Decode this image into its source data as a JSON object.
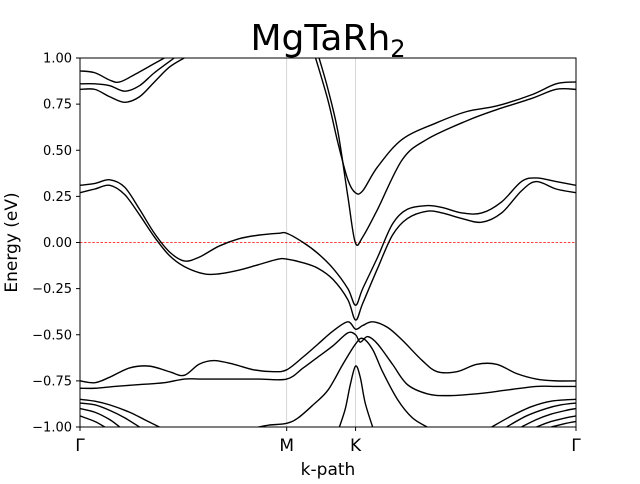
{
  "chart_data": {
    "type": "line",
    "title": {
      "main": "MgTaRh",
      "sub": "2"
    },
    "xlabel": "k-path",
    "ylabel": "Energy (eV)",
    "ylim": [
      -1.0,
      1.0
    ],
    "yticks": [
      -1.0,
      -0.75,
      -0.5,
      -0.25,
      0.0,
      0.25,
      0.5,
      0.75,
      1.0
    ],
    "ytick_labels": [
      "−1.00",
      "−0.75",
      "−0.50",
      "−0.25",
      "0.00",
      "0.25",
      "0.50",
      "0.75",
      "1.00"
    ],
    "kpoints": [
      {
        "label": "Γ",
        "x": 0.0
      },
      {
        "label": "M",
        "x": 0.4167
      },
      {
        "label": "K",
        "x": 0.5556
      },
      {
        "label": "Γ",
        "x": 1.0
      }
    ],
    "fermi_level": 0.0,
    "grid": "vertical lines at high-symmetry points",
    "series": [
      {
        "values": [
          [
            0.0,
            0.83
          ],
          [
            0.03,
            0.83
          ],
          [
            0.06,
            0.79
          ],
          [
            0.09,
            0.76
          ],
          [
            0.12,
            0.79
          ],
          [
            0.15,
            0.87
          ],
          [
            0.18,
            0.95
          ],
          [
            0.21,
            1.0
          ]
        ]
      },
      {
        "values": [
          [
            0.0,
            0.86
          ],
          [
            0.03,
            0.86
          ],
          [
            0.06,
            0.85
          ],
          [
            0.09,
            0.82
          ],
          [
            0.12,
            0.85
          ],
          [
            0.15,
            0.92
          ],
          [
            0.19,
            1.0
          ]
        ]
      },
      {
        "values": [
          [
            0.0,
            0.93
          ],
          [
            0.03,
            0.92
          ],
          [
            0.06,
            0.88
          ],
          [
            0.08,
            0.87
          ],
          [
            0.11,
            0.91
          ],
          [
            0.15,
            0.97
          ],
          [
            0.17,
            1.0
          ]
        ]
      },
      {
        "values": [
          [
            0.0,
            0.27
          ],
          [
            0.03,
            0.29
          ],
          [
            0.06,
            0.31
          ],
          [
            0.09,
            0.26
          ],
          [
            0.12,
            0.15
          ],
          [
            0.15,
            0.03
          ],
          [
            0.18,
            -0.07
          ],
          [
            0.21,
            -0.13
          ],
          [
            0.25,
            -0.17
          ],
          [
            0.28,
            -0.17
          ],
          [
            0.32,
            -0.15
          ],
          [
            0.36,
            -0.12
          ],
          [
            0.4,
            -0.09
          ],
          [
            0.4167,
            -0.09
          ],
          [
            0.45,
            -0.11
          ],
          [
            0.48,
            -0.14
          ],
          [
            0.51,
            -0.2
          ],
          [
            0.54,
            -0.31
          ],
          [
            0.5556,
            -0.42
          ],
          [
            0.57,
            -0.33
          ],
          [
            0.6,
            -0.14
          ],
          [
            0.63,
            0.04
          ],
          [
            0.66,
            0.13
          ],
          [
            0.7,
            0.17
          ],
          [
            0.73,
            0.16
          ],
          [
            0.77,
            0.13
          ],
          [
            0.81,
            0.11
          ],
          [
            0.85,
            0.16
          ],
          [
            0.89,
            0.28
          ],
          [
            0.92,
            0.33
          ],
          [
            0.96,
            0.29
          ],
          [
            1.0,
            0.27
          ]
        ]
      },
      {
        "values": [
          [
            0.0,
            0.31
          ],
          [
            0.03,
            0.32
          ],
          [
            0.06,
            0.34
          ],
          [
            0.09,
            0.3
          ],
          [
            0.12,
            0.18
          ],
          [
            0.15,
            0.05
          ],
          [
            0.18,
            -0.05
          ],
          [
            0.21,
            -0.1
          ],
          [
            0.24,
            -0.08
          ],
          [
            0.28,
            -0.02
          ],
          [
            0.32,
            0.02
          ],
          [
            0.36,
            0.04
          ],
          [
            0.4,
            0.05
          ],
          [
            0.4167,
            0.05
          ],
          [
            0.45,
            0.0
          ],
          [
            0.48,
            -0.06
          ],
          [
            0.51,
            -0.14
          ],
          [
            0.54,
            -0.25
          ],
          [
            0.5556,
            -0.34
          ],
          [
            0.57,
            -0.25
          ],
          [
            0.6,
            -0.08
          ],
          [
            0.63,
            0.1
          ],
          [
            0.66,
            0.18
          ],
          [
            0.7,
            0.2
          ],
          [
            0.73,
            0.19
          ],
          [
            0.77,
            0.16
          ],
          [
            0.81,
            0.16
          ],
          [
            0.85,
            0.22
          ],
          [
            0.89,
            0.33
          ],
          [
            0.92,
            0.35
          ],
          [
            0.96,
            0.33
          ],
          [
            1.0,
            0.31
          ]
        ]
      },
      {
        "values": [
          [
            0.482,
            1.0
          ],
          [
            0.5,
            0.83
          ],
          [
            0.52,
            0.6
          ],
          [
            0.54,
            0.25
          ],
          [
            0.555,
            0.0
          ],
          [
            0.57,
            0.03
          ],
          [
            0.6,
            0.18
          ],
          [
            0.65,
            0.45
          ],
          [
            0.7,
            0.56
          ],
          [
            0.78,
            0.66
          ],
          [
            0.84,
            0.72
          ],
          [
            0.91,
            0.78
          ],
          [
            0.96,
            0.83
          ],
          [
            1.0,
            0.83
          ]
        ]
      },
      {
        "values": [
          [
            0.475,
            1.0
          ],
          [
            0.5,
            0.77
          ],
          [
            0.52,
            0.54
          ],
          [
            0.54,
            0.34
          ],
          [
            0.555,
            0.27
          ],
          [
            0.57,
            0.28
          ],
          [
            0.6,
            0.41
          ],
          [
            0.65,
            0.56
          ],
          [
            0.72,
            0.65
          ],
          [
            0.78,
            0.71
          ],
          [
            0.84,
            0.74
          ],
          [
            0.91,
            0.8
          ],
          [
            0.96,
            0.86
          ],
          [
            1.0,
            0.87
          ]
        ]
      },
      {
        "values": [
          [
            0.0,
            -0.75
          ],
          [
            0.03,
            -0.76
          ],
          [
            0.06,
            -0.73
          ],
          [
            0.1,
            -0.68
          ],
          [
            0.14,
            -0.67
          ],
          [
            0.18,
            -0.7
          ],
          [
            0.21,
            -0.72
          ],
          [
            0.24,
            -0.66
          ],
          [
            0.27,
            -0.64
          ],
          [
            0.31,
            -0.66
          ],
          [
            0.35,
            -0.69
          ],
          [
            0.39,
            -0.7
          ],
          [
            0.4167,
            -0.69
          ],
          [
            0.45,
            -0.62
          ],
          [
            0.48,
            -0.55
          ],
          [
            0.51,
            -0.48
          ],
          [
            0.54,
            -0.43
          ],
          [
            0.5556,
            -0.47
          ],
          [
            0.57,
            -0.45
          ],
          [
            0.59,
            -0.43
          ],
          [
            0.62,
            -0.46
          ],
          [
            0.65,
            -0.53
          ],
          [
            0.69,
            -0.64
          ],
          [
            0.72,
            -0.7
          ],
          [
            0.76,
            -0.7
          ],
          [
            0.8,
            -0.66
          ],
          [
            0.84,
            -0.66
          ],
          [
            0.88,
            -0.71
          ],
          [
            0.92,
            -0.74
          ],
          [
            0.96,
            -0.75
          ],
          [
            1.0,
            -0.75
          ]
        ]
      },
      {
        "values": [
          [
            0.0,
            -0.79
          ],
          [
            0.03,
            -0.79
          ],
          [
            0.07,
            -0.78
          ],
          [
            0.12,
            -0.77
          ],
          [
            0.17,
            -0.76
          ],
          [
            0.21,
            -0.74
          ],
          [
            0.24,
            -0.74
          ],
          [
            0.3,
            -0.74
          ],
          [
            0.36,
            -0.74
          ],
          [
            0.4167,
            -0.74
          ],
          [
            0.45,
            -0.68
          ],
          [
            0.48,
            -0.62
          ],
          [
            0.51,
            -0.56
          ],
          [
            0.54,
            -0.49
          ],
          [
            0.5556,
            -0.5
          ],
          [
            0.565,
            -0.54
          ],
          [
            0.58,
            -0.51
          ],
          [
            0.6,
            -0.55
          ],
          [
            0.63,
            -0.66
          ],
          [
            0.66,
            -0.77
          ],
          [
            0.7,
            -0.82
          ],
          [
            0.74,
            -0.83
          ],
          [
            0.8,
            -0.82
          ],
          [
            0.86,
            -0.8
          ],
          [
            0.92,
            -0.78
          ],
          [
            0.96,
            -0.78
          ],
          [
            1.0,
            -0.78
          ]
        ]
      },
      {
        "values": [
          [
            0.36,
            -1.0
          ],
          [
            0.38,
            -0.99
          ],
          [
            0.4167,
            -0.98
          ],
          [
            0.44,
            -0.95
          ],
          [
            0.47,
            -0.88
          ],
          [
            0.5,
            -0.8
          ],
          [
            0.53,
            -0.66
          ],
          [
            0.5556,
            -0.55
          ],
          [
            0.57,
            -0.52
          ],
          [
            0.59,
            -0.58
          ],
          [
            0.61,
            -0.7
          ],
          [
            0.64,
            -0.85
          ],
          [
            0.67,
            -0.95
          ],
          [
            0.7,
            -1.0
          ]
        ]
      },
      {
        "values": [
          [
            0.523,
            -1.0
          ],
          [
            0.535,
            -0.9
          ],
          [
            0.545,
            -0.77
          ],
          [
            0.5556,
            -0.67
          ],
          [
            0.565,
            -0.73
          ],
          [
            0.575,
            -0.87
          ],
          [
            0.59,
            -1.0
          ]
        ]
      },
      {
        "values": [
          [
            0.0,
            -0.85
          ],
          [
            0.03,
            -0.86
          ],
          [
            0.06,
            -0.88
          ],
          [
            0.1,
            -0.92
          ],
          [
            0.13,
            -0.96
          ],
          [
            0.16,
            -1.0
          ]
        ]
      },
      {
        "values": [
          [
            0.0,
            -0.87
          ],
          [
            0.03,
            -0.88
          ],
          [
            0.06,
            -0.91
          ],
          [
            0.09,
            -0.95
          ],
          [
            0.12,
            -1.0
          ]
        ]
      },
      {
        "values": [
          [
            0.0,
            -0.9
          ],
          [
            0.03,
            -0.92
          ],
          [
            0.06,
            -0.96
          ],
          [
            0.08,
            -1.0
          ]
        ]
      },
      {
        "values": [
          [
            0.0,
            -0.94
          ],
          [
            0.03,
            -0.97
          ],
          [
            0.05,
            -1.0
          ]
        ]
      },
      {
        "values": [
          [
            0.83,
            -1.0
          ],
          [
            0.87,
            -0.94
          ],
          [
            0.91,
            -0.89
          ],
          [
            0.95,
            -0.86
          ],
          [
            1.0,
            -0.85
          ]
        ]
      },
      {
        "values": [
          [
            0.86,
            -1.0
          ],
          [
            0.9,
            -0.94
          ],
          [
            0.94,
            -0.9
          ],
          [
            0.97,
            -0.88
          ],
          [
            1.0,
            -0.87
          ]
        ]
      },
      {
        "values": [
          [
            0.89,
            -1.0
          ],
          [
            0.92,
            -0.96
          ],
          [
            0.95,
            -0.93
          ],
          [
            0.98,
            -0.91
          ],
          [
            1.0,
            -0.9
          ]
        ]
      },
      {
        "values": [
          [
            0.92,
            -1.0
          ],
          [
            0.95,
            -0.97
          ],
          [
            0.98,
            -0.95
          ],
          [
            1.0,
            -0.94
          ]
        ]
      },
      {
        "values": [
          [
            0.95,
            -1.0
          ],
          [
            0.98,
            -0.98
          ],
          [
            1.0,
            -0.97
          ]
        ]
      }
    ]
  }
}
